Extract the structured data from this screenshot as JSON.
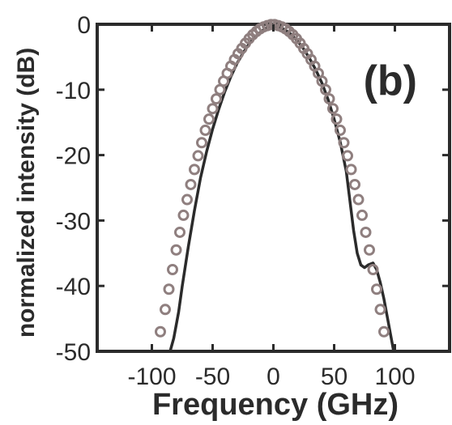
{
  "chart_data": {
    "type": "line",
    "panel_label": "(b)",
    "xlabel": "Frequency (GHz)",
    "ylabel": "normalized intensity (dB)",
    "xlim": [
      -145,
      145
    ],
    "ylim": [
      -50,
      0
    ],
    "x_ticks": [
      -100,
      -50,
      0,
      50,
      100
    ],
    "y_ticks": [
      0,
      -10,
      -20,
      -30,
      -40,
      -50
    ],
    "grid": false,
    "series": [
      {
        "style": "solid-line",
        "color": "#2b2b2b",
        "points": [
          [
            -85,
            -50
          ],
          [
            -82,
            -48
          ],
          [
            -78,
            -44
          ],
          [
            -75,
            -40
          ],
          [
            -70,
            -34
          ],
          [
            -65,
            -28.5
          ],
          [
            -60,
            -23.5
          ],
          [
            -55,
            -19.5
          ],
          [
            -50,
            -16
          ],
          [
            -45,
            -13
          ],
          [
            -40,
            -10.3
          ],
          [
            -35,
            -8
          ],
          [
            -30,
            -6
          ],
          [
            -25,
            -4.4
          ],
          [
            -20,
            -3
          ],
          [
            -15,
            -1.9
          ],
          [
            -10,
            -1.1
          ],
          [
            -5,
            -0.5
          ],
          [
            0,
            -0.2
          ],
          [
            5,
            -0.4
          ],
          [
            10,
            -0.9
          ],
          [
            15,
            -1.6
          ],
          [
            20,
            -2.6
          ],
          [
            25,
            -3.8
          ],
          [
            30,
            -5.3
          ],
          [
            35,
            -7
          ],
          [
            40,
            -9
          ],
          [
            45,
            -11.5
          ],
          [
            50,
            -14.5
          ],
          [
            55,
            -18
          ],
          [
            60,
            -22.5
          ],
          [
            63,
            -27
          ],
          [
            66,
            -31.5
          ],
          [
            69,
            -35
          ],
          [
            72,
            -36.8
          ],
          [
            75,
            -37.2
          ],
          [
            78,
            -36.8
          ],
          [
            82,
            -36.5
          ],
          [
            85,
            -37.5
          ],
          [
            88,
            -39.5
          ],
          [
            91,
            -42
          ],
          [
            94,
            -45
          ],
          [
            97,
            -48
          ],
          [
            99,
            -50
          ]
        ]
      },
      {
        "style": "circle-markers",
        "color": "#8f7f7f",
        "points": [
          [
            -93,
            -47
          ],
          [
            -89,
            -43.6
          ],
          [
            -86,
            -40.5
          ],
          [
            -83,
            -37.5
          ],
          [
            -80,
            -34.5
          ],
          [
            -77,
            -31.8
          ],
          [
            -74,
            -29.2
          ],
          [
            -71,
            -26.8
          ],
          [
            -68,
            -24.5
          ],
          [
            -65,
            -22.2
          ],
          [
            -62,
            -20.1
          ],
          [
            -59,
            -18.1
          ],
          [
            -56,
            -16.2
          ],
          [
            -53,
            -14.5
          ],
          [
            -50,
            -12.9
          ],
          [
            -47,
            -11.4
          ],
          [
            -44,
            -10
          ],
          [
            -41,
            -8.7
          ],
          [
            -38,
            -7.5
          ],
          [
            -35,
            -6.4
          ],
          [
            -32,
            -5.4
          ],
          [
            -29,
            -4.5
          ],
          [
            -26,
            -3.7
          ],
          [
            -23,
            -2.9
          ],
          [
            -20,
            -2.2
          ],
          [
            -17,
            -1.6
          ],
          [
            -14,
            -1.1
          ],
          [
            -11,
            -0.7
          ],
          [
            -8,
            -0.4
          ],
          [
            -5,
            -0.2
          ],
          [
            -2,
            -0.05
          ],
          [
            1,
            -0.05
          ],
          [
            4,
            -0.2
          ],
          [
            7,
            -0.4
          ],
          [
            10,
            -0.7
          ],
          [
            13,
            -1.1
          ],
          [
            16,
            -1.6
          ],
          [
            19,
            -2.2
          ],
          [
            22,
            -2.9
          ],
          [
            25,
            -3.7
          ],
          [
            28,
            -4.5
          ],
          [
            31,
            -5.4
          ],
          [
            34,
            -6.4
          ],
          [
            37,
            -7.5
          ],
          [
            40,
            -8.7
          ],
          [
            43,
            -10
          ],
          [
            46,
            -11.4
          ],
          [
            49,
            -12.9
          ],
          [
            52,
            -14.5
          ],
          [
            55,
            -16.2
          ],
          [
            58,
            -18.1
          ],
          [
            61,
            -20.1
          ],
          [
            64,
            -22.2
          ],
          [
            67,
            -24.5
          ],
          [
            70,
            -26.8
          ],
          [
            73,
            -29.2
          ],
          [
            76,
            -31.8
          ],
          [
            79,
            -34.5
          ],
          [
            82,
            -37.5
          ],
          [
            85,
            -40.5
          ],
          [
            88,
            -43.6
          ],
          [
            91,
            -47
          ]
        ]
      }
    ]
  }
}
